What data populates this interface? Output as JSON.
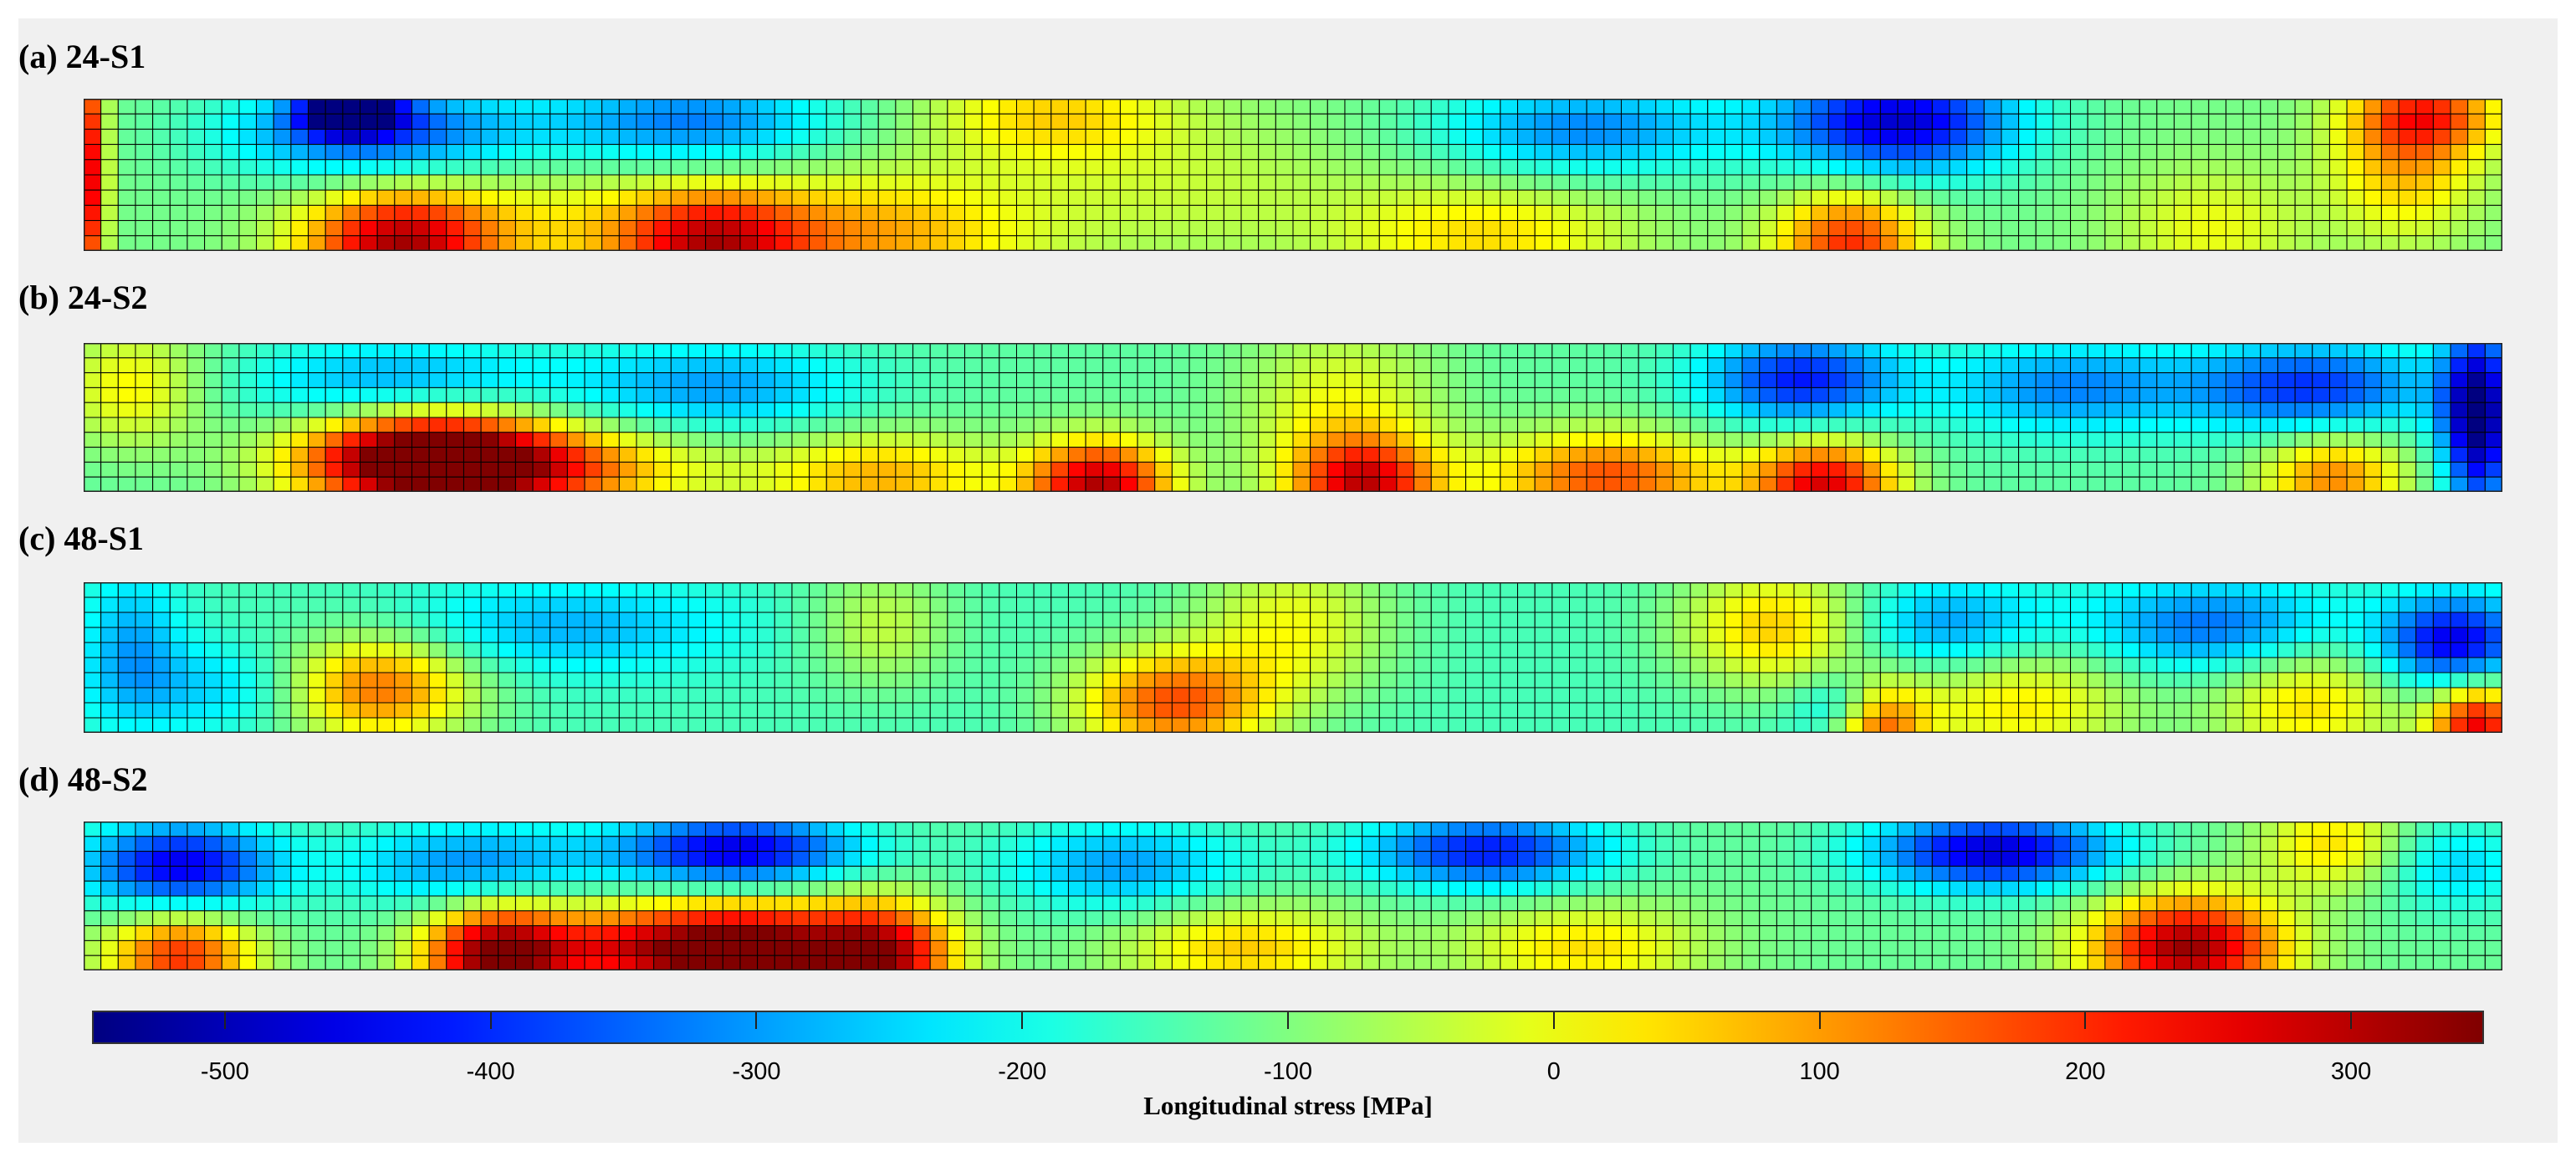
{
  "chart_data": {
    "type": "heatmap",
    "colormap": "jet",
    "color_range": [
      -550,
      350
    ],
    "colorbar": {
      "label": "Longitudinal stress [MPa]",
      "ticks": [
        -500,
        -400,
        -300,
        -200,
        -100,
        0,
        100,
        200,
        300
      ],
      "tick_labels": [
        "-500",
        "-400",
        "-300",
        "-200",
        "-100",
        "0",
        "100",
        "200",
        "300"
      ]
    },
    "panels": [
      {
        "label": "(a) 24-S1",
        "grid": {
          "columns": 140,
          "rows": 10
        },
        "hot_spots": [
          {
            "u": 0.003,
            "v": 0.5,
            "value": 250,
            "ru": 0.006,
            "rv": 0.9
          },
          {
            "u": 0.11,
            "v": 0.08,
            "value": -560,
            "ru": 0.02,
            "rv": 0.15
          },
          {
            "u": 0.12,
            "v": 0.22,
            "value": -380,
            "ru": 0.06,
            "rv": 0.3
          },
          {
            "u": 0.13,
            "v": 0.95,
            "value": 280,
            "ru": 0.04,
            "rv": 0.35
          },
          {
            "u": 0.2,
            "v": 0.85,
            "value": 0,
            "ru": 0.07,
            "rv": 0.4
          },
          {
            "u": 0.25,
            "v": 0.15,
            "value": -330,
            "ru": 0.06,
            "rv": 0.3
          },
          {
            "u": 0.26,
            "v": 0.95,
            "value": 220,
            "ru": 0.04,
            "rv": 0.35
          },
          {
            "u": 0.33,
            "v": 0.9,
            "value": 80,
            "ru": 0.06,
            "rv": 0.4
          },
          {
            "u": 0.4,
            "v": 0.1,
            "value": 40,
            "ru": 0.05,
            "rv": 0.3
          },
          {
            "u": 0.45,
            "v": 0.6,
            "value": -40,
            "ru": 0.08,
            "rv": 0.5
          },
          {
            "u": 0.62,
            "v": 0.2,
            "value": -320,
            "ru": 0.06,
            "rv": 0.3
          },
          {
            "u": 0.58,
            "v": 0.9,
            "value": 40,
            "ru": 0.06,
            "rv": 0.35
          },
          {
            "u": 0.75,
            "v": 0.15,
            "value": -480,
            "ru": 0.05,
            "rv": 0.35
          },
          {
            "u": 0.73,
            "v": 0.95,
            "value": 200,
            "ru": 0.03,
            "rv": 0.35
          },
          {
            "u": 0.88,
            "v": 0.85,
            "value": 0,
            "ru": 0.04,
            "rv": 0.4
          },
          {
            "u": 0.96,
            "v": 0.4,
            "value": 80,
            "ru": 0.03,
            "rv": 0.5
          },
          {
            "u": 0.97,
            "v": 0.1,
            "value": 120,
            "ru": 0.03,
            "rv": 0.25
          }
        ],
        "base_value": -110,
        "blank_cells": []
      },
      {
        "label": "(b) 24-S2",
        "grid": {
          "columns": 140,
          "rows": 10
        },
        "hot_spots": [
          {
            "u": 0.02,
            "v": 0.3,
            "value": 20,
            "ru": 0.03,
            "rv": 0.4
          },
          {
            "u": 0.13,
            "v": 0.3,
            "value": -330,
            "ru": 0.06,
            "rv": 0.3
          },
          {
            "u": 0.14,
            "v": 0.75,
            "value": 340,
            "ru": 0.05,
            "rv": 0.35
          },
          {
            "u": 0.18,
            "v": 0.85,
            "value": 180,
            "ru": 0.07,
            "rv": 0.3
          },
          {
            "u": 0.26,
            "v": 0.3,
            "value": -300,
            "ru": 0.06,
            "rv": 0.3
          },
          {
            "u": 0.33,
            "v": 0.9,
            "value": 80,
            "ru": 0.05,
            "rv": 0.3
          },
          {
            "u": 0.42,
            "v": 0.95,
            "value": 300,
            "ru": 0.03,
            "rv": 0.3
          },
          {
            "u": 0.52,
            "v": 0.5,
            "value": 10,
            "ru": 0.04,
            "rv": 0.6
          },
          {
            "u": 0.53,
            "v": 0.95,
            "value": 220,
            "ru": 0.03,
            "rv": 0.3
          },
          {
            "u": 0.63,
            "v": 0.9,
            "value": 170,
            "ru": 0.05,
            "rv": 0.3
          },
          {
            "u": 0.71,
            "v": 0.25,
            "value": -420,
            "ru": 0.04,
            "rv": 0.3
          },
          {
            "u": 0.72,
            "v": 0.95,
            "value": 260,
            "ru": 0.03,
            "rv": 0.3
          },
          {
            "u": 0.82,
            "v": 0.3,
            "value": -320,
            "ru": 0.05,
            "rv": 0.3
          },
          {
            "u": 0.92,
            "v": 0.3,
            "value": -400,
            "ru": 0.05,
            "rv": 0.3
          },
          {
            "u": 0.93,
            "v": 0.9,
            "value": 120,
            "ru": 0.03,
            "rv": 0.3
          },
          {
            "u": 0.99,
            "v": 0.5,
            "value": -560,
            "ru": 0.015,
            "rv": 0.6
          }
        ],
        "base_value": -130,
        "blank_cells": []
      },
      {
        "label": "(c) 48-S1",
        "grid": {
          "columns": 140,
          "rows": 10
        },
        "hot_spots": [
          {
            "u": 0.02,
            "v": 0.4,
            "value": -280,
            "ru": 0.02,
            "rv": 0.5
          },
          {
            "u": 0.06,
            "v": 0.7,
            "value": -260,
            "ru": 0.05,
            "rv": 0.3
          },
          {
            "u": 0.12,
            "v": 0.7,
            "value": 160,
            "ru": 0.04,
            "rv": 0.35
          },
          {
            "u": 0.2,
            "v": 0.3,
            "value": -280,
            "ru": 0.07,
            "rv": 0.3
          },
          {
            "u": 0.33,
            "v": 0.3,
            "value": -40,
            "ru": 0.03,
            "rv": 0.4
          },
          {
            "u": 0.45,
            "v": 0.8,
            "value": 160,
            "ru": 0.04,
            "rv": 0.35
          },
          {
            "u": 0.5,
            "v": 0.3,
            "value": 0,
            "ru": 0.04,
            "rv": 0.5
          },
          {
            "u": 0.7,
            "v": 0.3,
            "value": 60,
            "ru": 0.04,
            "rv": 0.4
          },
          {
            "u": 0.73,
            "v": 0.85,
            "value": -380,
            "ru": 0.02,
            "rv": 0.25
          },
          {
            "u": 0.74,
            "v": 0.95,
            "value": 220,
            "ru": 0.02,
            "rv": 0.3
          },
          {
            "u": 0.77,
            "v": 0.3,
            "value": -320,
            "ru": 0.04,
            "rv": 0.3
          },
          {
            "u": 0.8,
            "v": 0.8,
            "value": 30,
            "ru": 0.05,
            "rv": 0.4
          },
          {
            "u": 0.88,
            "v": 0.3,
            "value": -350,
            "ru": 0.05,
            "rv": 0.3
          },
          {
            "u": 0.92,
            "v": 0.8,
            "value": 40,
            "ru": 0.04,
            "rv": 0.4
          },
          {
            "u": 0.98,
            "v": 0.4,
            "value": -470,
            "ru": 0.03,
            "rv": 0.3
          },
          {
            "u": 0.99,
            "v": 0.95,
            "value": 250,
            "ru": 0.02,
            "rv": 0.3
          }
        ],
        "base_value": -150,
        "blank_cells": []
      },
      {
        "label": "(d) 48-S2",
        "grid": {
          "columns": 140,
          "rows": 10
        },
        "hot_spots": [
          {
            "u": 0.04,
            "v": 0.3,
            "value": -460,
            "ru": 0.04,
            "rv": 0.3
          },
          {
            "u": 0.04,
            "v": 0.9,
            "value": 200,
            "ru": 0.03,
            "rv": 0.3
          },
          {
            "u": 0.16,
            "v": 0.3,
            "value": -320,
            "ru": 0.05,
            "rv": 0.3
          },
          {
            "u": 0.17,
            "v": 0.9,
            "value": 320,
            "ru": 0.03,
            "rv": 0.35
          },
          {
            "u": 0.23,
            "v": 0.85,
            "value": 220,
            "ru": 0.05,
            "rv": 0.3
          },
          {
            "u": 0.27,
            "v": 0.2,
            "value": -470,
            "ru": 0.05,
            "rv": 0.25
          },
          {
            "u": 0.28,
            "v": 0.9,
            "value": 300,
            "ru": 0.04,
            "rv": 0.35
          },
          {
            "u": 0.33,
            "v": 0.9,
            "value": 300,
            "ru": 0.03,
            "rv": 0.35
          },
          {
            "u": 0.43,
            "v": 0.3,
            "value": -300,
            "ru": 0.05,
            "rv": 0.3
          },
          {
            "u": 0.48,
            "v": 0.85,
            "value": 60,
            "ru": 0.05,
            "rv": 0.3
          },
          {
            "u": 0.58,
            "v": 0.2,
            "value": -420,
            "ru": 0.05,
            "rv": 0.25
          },
          {
            "u": 0.62,
            "v": 0.85,
            "value": 40,
            "ru": 0.05,
            "rv": 0.3
          },
          {
            "u": 0.79,
            "v": 0.2,
            "value": -480,
            "ru": 0.05,
            "rv": 0.25
          },
          {
            "u": 0.87,
            "v": 0.85,
            "value": 330,
            "ru": 0.04,
            "rv": 0.35
          },
          {
            "u": 0.93,
            "v": 0.15,
            "value": 40,
            "ru": 0.03,
            "rv": 0.3
          },
          {
            "u": 0.98,
            "v": 0.3,
            "value": -250,
            "ru": 0.03,
            "rv": 0.3
          }
        ],
        "base_value": -120,
        "blank_cells": []
      }
    ]
  }
}
